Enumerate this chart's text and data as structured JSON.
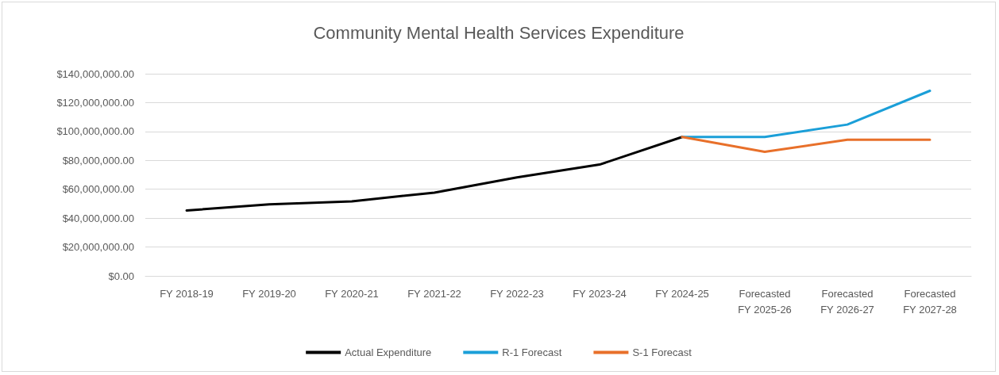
{
  "chart_data": {
    "type": "line",
    "title": "Community Mental Health Services Expenditure",
    "categories": [
      "FY 2018-19",
      "FY 2019-20",
      "FY 2020-21",
      "FY 2021-22",
      "FY 2022-23",
      "FY 2023-24",
      "FY 2024-25",
      "Forecasted\nFY 2025-26",
      "Forecasted\nFY 2026-27",
      "Forecasted\nFY 2027-28"
    ],
    "series": [
      {
        "name": "Actual Expenditure",
        "color": "#000000",
        "values": [
          45300000,
          49500000,
          51600000,
          57700000,
          68200000,
          77100000,
          96200000,
          null,
          null,
          null
        ]
      },
      {
        "name": "R-1 Forecast",
        "color": "#1b9fd8",
        "values": [
          null,
          null,
          null,
          null,
          null,
          null,
          96200000,
          96200000,
          104800000,
          128200000
        ]
      },
      {
        "name": "S-1 Forecast",
        "color": "#e8702a",
        "values": [
          null,
          null,
          null,
          null,
          null,
          null,
          96200000,
          85900000,
          94300000,
          94300000
        ]
      }
    ],
    "ylim": [
      0,
      140000000
    ],
    "yticks": [
      {
        "value": 0,
        "label": "$0.00"
      },
      {
        "value": 20000000,
        "label": "$20,000,000.00"
      },
      {
        "value": 40000000,
        "label": "$40,000,000.00"
      },
      {
        "value": 60000000,
        "label": "$60,000,000.00"
      },
      {
        "value": 80000000,
        "label": "$80,000,000.00"
      },
      {
        "value": 100000000,
        "label": "$100,000,000.00"
      },
      {
        "value": 120000000,
        "label": "$120,000,000.00"
      },
      {
        "value": 140000000,
        "label": "$140,000,000.00"
      }
    ],
    "grid": "y",
    "legend": "bottom",
    "marker": "none",
    "line_style": "solid"
  }
}
